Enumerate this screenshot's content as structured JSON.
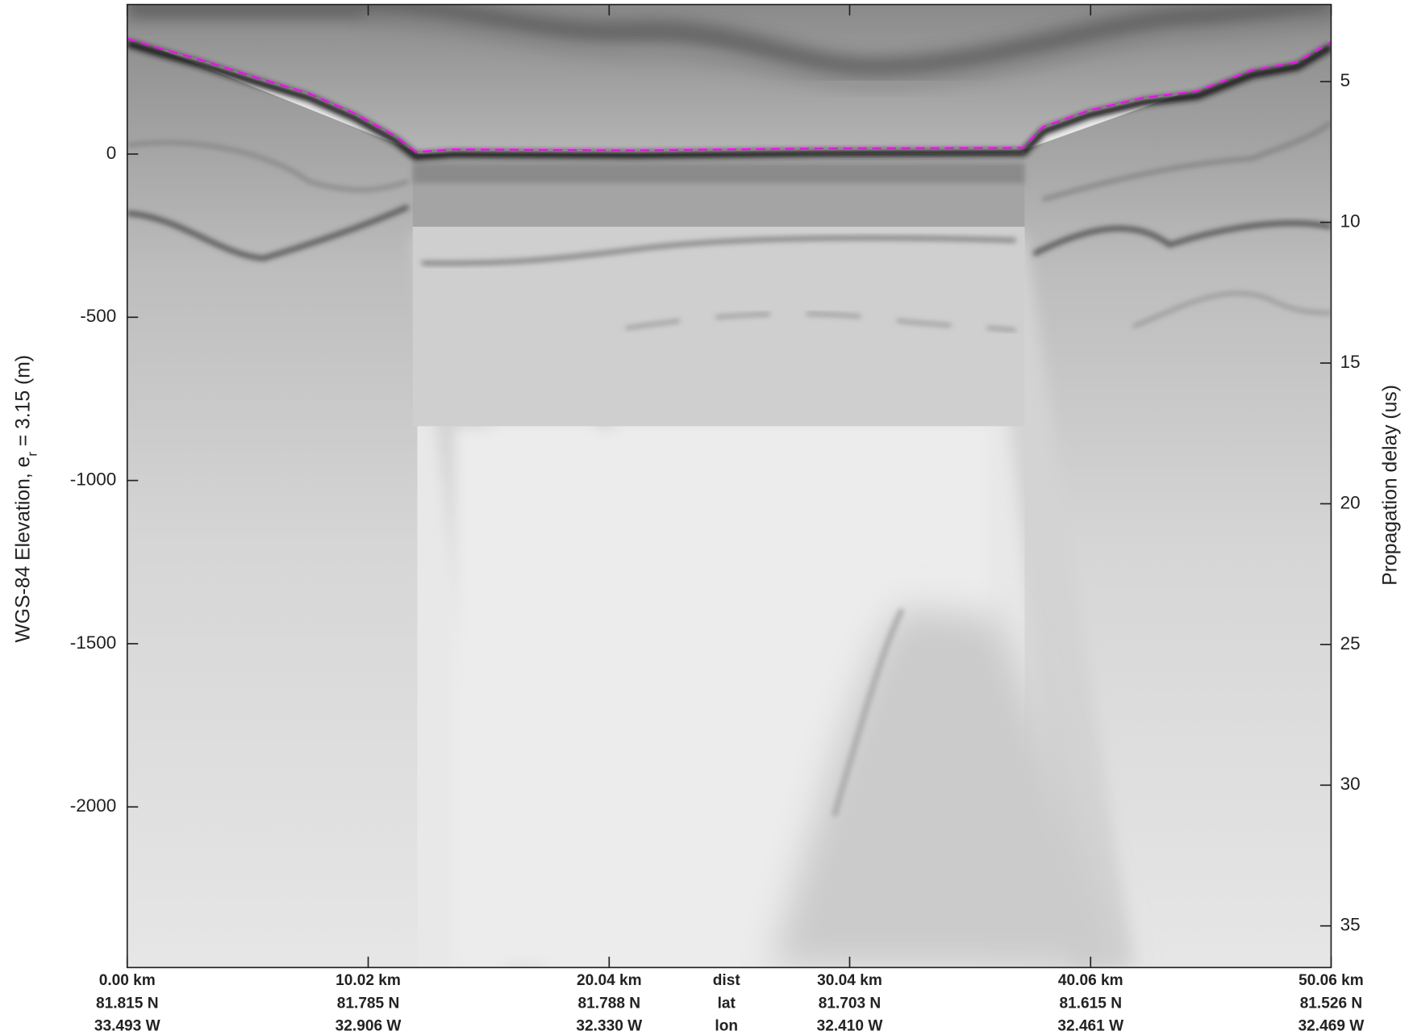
{
  "chart_data": {
    "type": "image",
    "ylabel": {
      "main": "WGS-84 Elevation, e",
      "sub": "r",
      "rest": "= 3.15 (m)"
    },
    "y2label": "Propagation delay (us)",
    "xlim": [
      0,
      50.06
    ],
    "ylim": [
      -2492,
      458
    ],
    "y2lim": [
      36.48,
      2.26
    ],
    "xticks": [
      {
        "value": 0,
        "label": "0.00 km"
      },
      {
        "value": 10.02,
        "label": "10.02 km"
      },
      {
        "value": 20.04,
        "label": "20.04 km"
      },
      {
        "value": 30.04,
        "label": "30.04 km"
      },
      {
        "value": 40.06,
        "label": "40.06 km"
      },
      {
        "value": 50.06,
        "label": "50.06 km"
      }
    ],
    "lat_labels": [
      "81.815 N",
      "81.785 N",
      "81.788 N",
      "81.703 N",
      "81.615 N",
      "81.526 N"
    ],
    "lon_labels": [
      "33.493 W",
      "32.906 W",
      "32.330 W",
      "32.410 W",
      "32.461 W",
      "32.469 W"
    ],
    "row_names": [
      "dist",
      "lat",
      "lon"
    ],
    "yticks": [
      0,
      -500,
      -1000,
      -1500,
      -2000
    ],
    "y2ticks": [
      5,
      10,
      15,
      20,
      25,
      30,
      35
    ],
    "surface": {
      "color": "#ff00ff",
      "x": [
        0,
        1.13,
        3.02,
        5.28,
        7.54,
        9.43,
        11.13,
        12.0,
        13.58,
        21.12,
        28.67,
        37.27,
        38.1,
        39.99,
        42.25,
        44.51,
        46.77,
        48.66,
        50.06
      ],
      "y": [
        353,
        328,
        289,
        236,
        186,
        125,
        56,
        6,
        14,
        11,
        17,
        19,
        83,
        133,
        172,
        192,
        256,
        281,
        342
      ]
    }
  }
}
